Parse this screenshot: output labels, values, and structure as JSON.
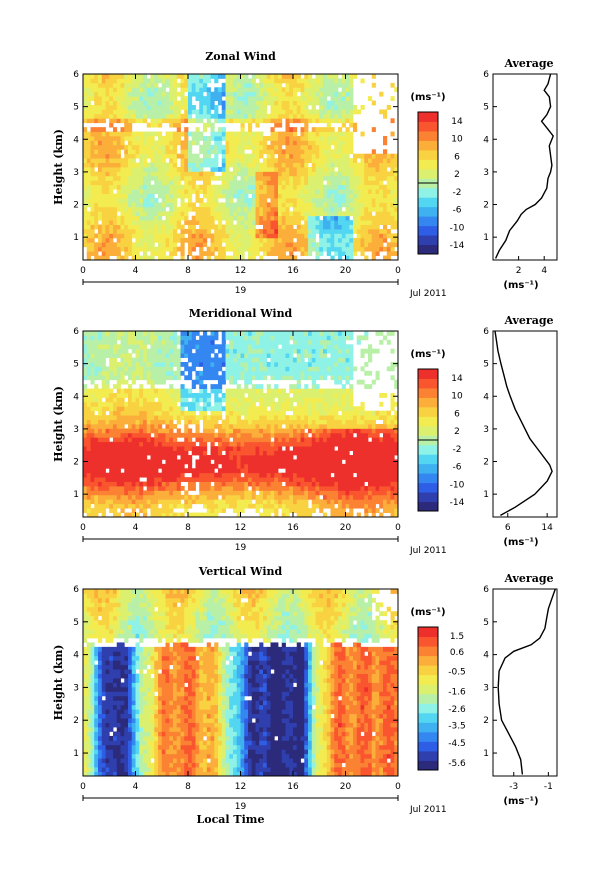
{
  "chart_data": [
    {
      "type": "heatmap",
      "title": "Zonal Wind",
      "ylabel": "Height (km)",
      "xticks": [
        "0",
        "4",
        "8",
        "12",
        "16",
        "20",
        "0"
      ],
      "yticks": [
        "1",
        "2",
        "3",
        "4",
        "5",
        "6"
      ],
      "date_day": "19",
      "date_month": "Jul 2011",
      "xlim": [
        0,
        24
      ],
      "ylim": [
        0.3,
        6
      ],
      "colorbar": {
        "unit": "(ms⁻¹)",
        "ticks": [
          "14",
          "10",
          "6",
          "2",
          "-2",
          "-6",
          "-10",
          "-14"
        ],
        "values": [
          14,
          10,
          6,
          2,
          -2,
          -6,
          -10,
          -14
        ],
        "range": [
          -16,
          16
        ],
        "zero_line": 0
      },
      "average": {
        "title": "Average",
        "xlabel": "(ms⁻¹)",
        "xticks": [
          "2",
          "4"
        ],
        "xtick_values": [
          2,
          4
        ],
        "xlim": [
          0,
          5
        ],
        "yticks": [
          "1",
          "2",
          "3",
          "4",
          "5",
          "6"
        ],
        "height": [
          0.35,
          0.6,
          0.9,
          1.2,
          1.35,
          1.5,
          1.7,
          1.85,
          2.0,
          2.2,
          2.5,
          2.8,
          3.0,
          3.2,
          3.5,
          3.8,
          4.1,
          4.35,
          4.55,
          4.75,
          5.0,
          5.3,
          5.5,
          5.7,
          6.0
        ],
        "value": [
          0.2,
          0.5,
          1.0,
          1.3,
          1.6,
          1.9,
          2.2,
          2.6,
          3.3,
          3.8,
          4.2,
          4.3,
          4.5,
          4.6,
          4.5,
          4.4,
          4.7,
          4.2,
          3.8,
          4.2,
          4.5,
          4.4,
          4.0,
          4.3,
          4.5
        ]
      }
    },
    {
      "type": "heatmap",
      "title": "Meridional Wind",
      "ylabel": "Height (km)",
      "xticks": [
        "0",
        "4",
        "8",
        "12",
        "16",
        "20",
        "0"
      ],
      "yticks": [
        "1",
        "2",
        "3",
        "4",
        "5",
        "6"
      ],
      "date_day": "19",
      "date_month": "Jul 2011",
      "xlim": [
        0,
        24
      ],
      "ylim": [
        0.3,
        6
      ],
      "colorbar": {
        "unit": "(ms⁻¹)",
        "ticks": [
          "14",
          "10",
          "6",
          "2",
          "-2",
          "-6",
          "-10",
          "-14"
        ],
        "values": [
          14,
          10,
          6,
          2,
          -2,
          -6,
          -10,
          -14
        ],
        "range": [
          -16,
          16
        ],
        "zero_line": 0
      },
      "average": {
        "title": "Average",
        "xlabel": "(ms⁻¹)",
        "xticks": [
          "6",
          "14"
        ],
        "xtick_values": [
          6,
          14
        ],
        "xlim": [
          3,
          16
        ],
        "yticks": [
          "1",
          "2",
          "3",
          "4",
          "5",
          "6"
        ],
        "height": [
          0.35,
          0.6,
          1.0,
          1.4,
          1.7,
          1.9,
          2.1,
          2.4,
          2.7,
          3.0,
          3.3,
          3.6,
          4.0,
          4.3,
          4.6,
          5.0,
          5.4,
          5.8,
          6.0
        ],
        "value": [
          4.5,
          7.5,
          11.5,
          14.0,
          15.0,
          14.5,
          13.5,
          12.0,
          10.5,
          9.5,
          8.5,
          7.5,
          6.5,
          5.8,
          5.3,
          4.6,
          4.0,
          3.6,
          3.4
        ]
      }
    },
    {
      "type": "heatmap",
      "title": "Vertical Wind",
      "ylabel": "Height (km)",
      "xlabel": "Local Time",
      "xticks": [
        "0",
        "4",
        "8",
        "12",
        "16",
        "20",
        "0"
      ],
      "yticks": [
        "1",
        "2",
        "3",
        "4",
        "5",
        "6"
      ],
      "date_day": "19",
      "date_month": "Jul 2011",
      "xlim": [
        0,
        24
      ],
      "ylim": [
        0.3,
        6
      ],
      "colorbar": {
        "unit": "(ms⁻¹)",
        "ticks": [
          "1.5",
          "0.6",
          "-0.5",
          "-1.6",
          "-2.6",
          "-3.5",
          "-4.5",
          "-5.6"
        ],
        "values": [
          1.5,
          0.6,
          -0.5,
          -1.6,
          -2.6,
          -3.5,
          -4.5,
          -5.6
        ],
        "range": [
          -6.0,
          2.0
        ]
      },
      "average": {
        "title": "Average",
        "xlabel": "(ms⁻¹)",
        "xticks": [
          "-3",
          "-1"
        ],
        "xtick_values": [
          -3,
          -1
        ],
        "xlim": [
          -4.2,
          -0.5
        ],
        "yticks": [
          "1",
          "2",
          "3",
          "4",
          "5",
          "6"
        ],
        "height": [
          0.35,
          0.8,
          1.2,
          1.6,
          2.0,
          2.5,
          3.0,
          3.5,
          3.9,
          4.1,
          4.3,
          4.5,
          4.8,
          5.1,
          5.4,
          5.7,
          6.0
        ],
        "value": [
          -2.5,
          -2.6,
          -2.9,
          -3.3,
          -3.7,
          -3.85,
          -3.9,
          -3.85,
          -3.5,
          -3.0,
          -2.0,
          -1.5,
          -1.2,
          -1.1,
          -1.0,
          -0.8,
          -0.6
        ]
      }
    }
  ]
}
